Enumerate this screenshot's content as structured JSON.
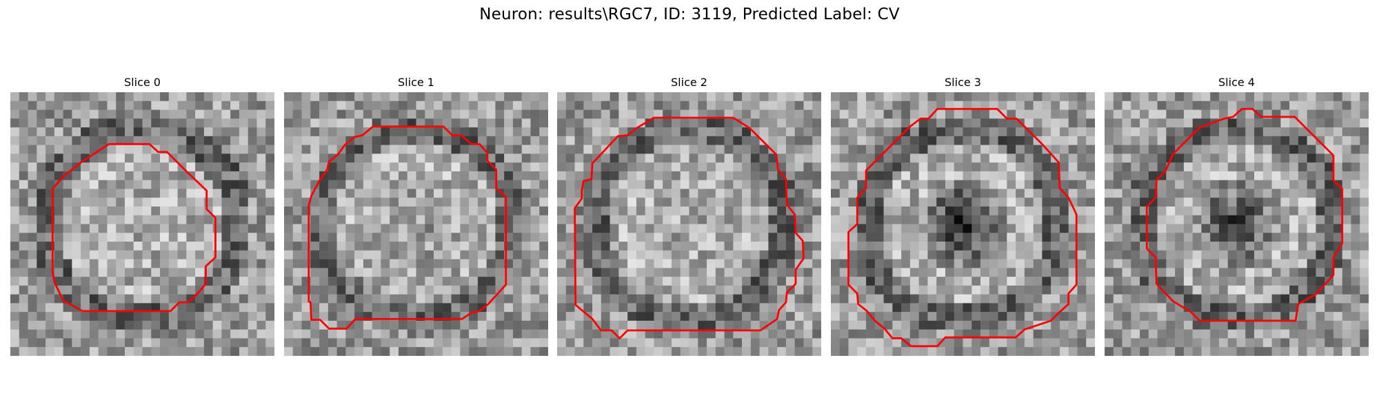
{
  "figure": {
    "title": "Neuron: results\\RGC7, ID: 3119, Predicted Label: CV",
    "contour_color": "#ff0000"
  },
  "slices": [
    {
      "title": "Slice 0",
      "center_dark": 0.0
    },
    {
      "title": "Slice 1",
      "center_dark": 0.15
    },
    {
      "title": "Slice 2",
      "center_dark": 0.05
    },
    {
      "title": "Slice 3",
      "center_dark": 0.85
    },
    {
      "title": "Slice 4",
      "center_dark": 0.7
    }
  ]
}
